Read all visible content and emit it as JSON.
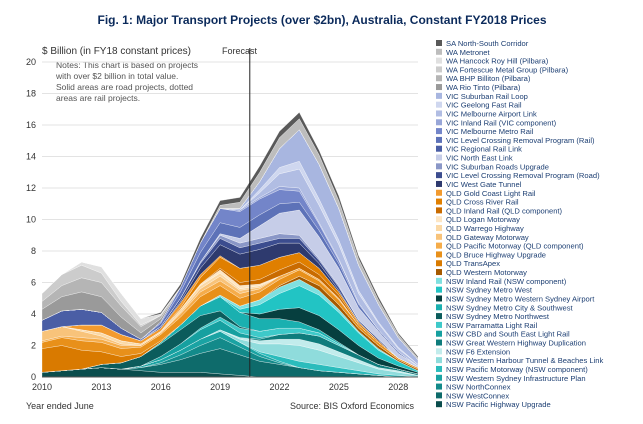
{
  "chart_data": {
    "type": "area",
    "title": "Fig. 1:   Major Transport Projects (over $2bn), Australia, Constant FY2018 Prices",
    "ylabel": "$ Billion (in FY18 constant prices)",
    "xlabel": "Year ended June",
    "source": "Source: BIS Oxford Economics",
    "note": [
      "Notes: This chart is based on projects",
      "with over $2 billion in total value.",
      "Solid areas are road projects, dotted",
      "areas are rail projects."
    ],
    "forecast_label": "Forecast",
    "forecast_x": 2020.5,
    "xlim": [
      2010,
      2029
    ],
    "ylim": [
      0,
      20
    ],
    "x_ticks": [
      2010,
      2013,
      2016,
      2019,
      2022,
      2025,
      2028
    ],
    "y_ticks": [
      0,
      2,
      4,
      6,
      8,
      10,
      12,
      14,
      16,
      18,
      20
    ],
    "grid": "horizontal",
    "legend_position": "right",
    "x": [
      2010,
      2011,
      2012,
      2013,
      2014,
      2015,
      2016,
      2017,
      2018,
      2019,
      2020,
      2021,
      2022,
      2023,
      2024,
      2025,
      2026,
      2027,
      2028,
      2029
    ],
    "series": [
      {
        "name": "NSW Pacific Highway Upgrade",
        "color": "#0a4d4d",
        "values": [
          0.3,
          0.4,
          0.5,
          0.6,
          0.5,
          0.4,
          0.3,
          0.3,
          0.3,
          0.2,
          0.1,
          0,
          0,
          0,
          0,
          0,
          0,
          0,
          0,
          0
        ]
      },
      {
        "name": "NSW WestConnex",
        "color": "#0e6b6b",
        "values": [
          0,
          0,
          0,
          0,
          0,
          0.2,
          0.5,
          0.8,
          1.2,
          1.6,
          1.3,
          1.0,
          0.8,
          0.6,
          0.4,
          0.3,
          0.2,
          0.1,
          0,
          0
        ]
      },
      {
        "name": "NSW NorthConnex",
        "color": "#138a8a",
        "values": [
          0,
          0,
          0,
          0,
          0,
          0,
          0.1,
          0.3,
          0.5,
          0.7,
          0.5,
          0.3,
          0.1,
          0,
          0,
          0,
          0,
          0,
          0,
          0
        ]
      },
      {
        "name": "NSW Western Sydney Infrastructure Plan",
        "color": "#1aa3a3",
        "values": [
          0,
          0,
          0,
          0,
          0,
          0.1,
          0.2,
          0.3,
          0.4,
          0.4,
          0.3,
          0.2,
          0.1,
          0,
          0,
          0,
          0,
          0,
          0,
          0
        ]
      },
      {
        "name": "NSW Pacific Motorway (NSW component)",
        "color": "#2bbcbc",
        "values": [
          0,
          0,
          0,
          0,
          0,
          0,
          0,
          0,
          0,
          0,
          0,
          0.1,
          0.3,
          0.4,
          0.4,
          0.3,
          0.2,
          0.1,
          0.1,
          0
        ]
      },
      {
        "name": "NSW Western Harbour Tunnel & Beaches Link",
        "color": "#8fdcdc",
        "values": [
          0,
          0,
          0,
          0,
          0,
          0,
          0,
          0,
          0,
          0.1,
          0.2,
          0.5,
          0.8,
          1.0,
          0.9,
          0.7,
          0.5,
          0.3,
          0.2,
          0.1
        ]
      },
      {
        "name": "NSW F6 Extension",
        "color": "#c2ecec",
        "values": [
          0,
          0,
          0,
          0,
          0,
          0,
          0,
          0,
          0,
          0,
          0.1,
          0.2,
          0.3,
          0.4,
          0.4,
          0.3,
          0.2,
          0.1,
          0.1,
          0
        ]
      },
      {
        "name": "NSW Great Western Highway Duplication",
        "color": "#0f7c7c",
        "values": [
          0,
          0,
          0,
          0,
          0,
          0,
          0,
          0,
          0,
          0,
          0,
          0.1,
          0.3,
          0.4,
          0.5,
          0.4,
          0.3,
          0.2,
          0.1,
          0.1
        ]
      },
      {
        "name": "NSW CBD and South East Light Rail",
        "color": "#16a0a0",
        "values": [
          0,
          0,
          0,
          0,
          0,
          0,
          0.2,
          0.4,
          0.6,
          0.6,
          0.3,
          0.1,
          0,
          0,
          0,
          0,
          0,
          0,
          0,
          0
        ]
      },
      {
        "name": "NSW Parramatta Light Rail",
        "color": "#3ec9c9",
        "values": [
          0,
          0,
          0,
          0,
          0,
          0,
          0,
          0,
          0.1,
          0.2,
          0.3,
          0.4,
          0.4,
          0.3,
          0.2,
          0.1,
          0,
          0,
          0,
          0
        ]
      },
      {
        "name": "NSW Sydney Metro Northwest",
        "color": "#0b5c5c",
        "values": [
          0,
          0,
          0,
          0.2,
          0.4,
          0.6,
          0.8,
          0.9,
          0.8,
          0.4,
          0.1,
          0,
          0,
          0,
          0,
          0,
          0,
          0,
          0,
          0
        ]
      },
      {
        "name": "NSW Sydney Metro City & Southwest",
        "color": "#1ab0b0",
        "values": [
          0,
          0,
          0,
          0,
          0,
          0,
          0.1,
          0.3,
          0.6,
          0.9,
          0.9,
          0.8,
          0.6,
          0.4,
          0.2,
          0.1,
          0,
          0,
          0,
          0
        ]
      },
      {
        "name": "NSW Sydney Metro Western Sydney Airport",
        "color": "#063f3f",
        "values": [
          0,
          0,
          0,
          0,
          0,
          0,
          0,
          0,
          0,
          0,
          0,
          0.3,
          0.6,
          0.9,
          0.9,
          0.8,
          0.6,
          0.4,
          0.2,
          0.1
        ]
      },
      {
        "name": "NSW Sydney Metro West",
        "color": "#22c4c4",
        "values": [
          0,
          0,
          0,
          0,
          0,
          0,
          0,
          0,
          0,
          0,
          0.2,
          0.6,
          1.0,
          1.4,
          1.3,
          1.1,
          0.8,
          0.5,
          0.3,
          0.1
        ]
      },
      {
        "name": "NSW Inland Rail (NSW component)",
        "color": "#7fe0e0",
        "values": [
          0,
          0,
          0,
          0,
          0,
          0,
          0,
          0,
          0,
          0.1,
          0.2,
          0.3,
          0.4,
          0.4,
          0.3,
          0.2,
          0.1,
          0.1,
          0,
          0
        ]
      },
      {
        "name": "QLD Western Motorway",
        "color": "#a65a00",
        "values": [
          0,
          0,
          0,
          0,
          0,
          0,
          0,
          0,
          0,
          0,
          0,
          0,
          0.1,
          0.2,
          0.3,
          0.3,
          0.2,
          0.2,
          0.1,
          0.1
        ]
      },
      {
        "name": "QLD TransApex",
        "color": "#d97a00",
        "values": [
          1.5,
          1.6,
          1.2,
          0.8,
          0.4,
          0.2,
          0.1,
          0,
          0,
          0,
          0,
          0,
          0,
          0,
          0,
          0,
          0,
          0,
          0,
          0
        ]
      },
      {
        "name": "QLD Bruce Highway Upgrade",
        "color": "#e8901a",
        "values": [
          0.4,
          0.5,
          0.6,
          0.6,
          0.5,
          0.4,
          0.4,
          0.5,
          0.6,
          0.6,
          0.5,
          0.5,
          0.4,
          0.4,
          0.3,
          0.3,
          0.2,
          0.2,
          0.1,
          0.1
        ]
      },
      {
        "name": "QLD Pacific Motorway (QLD component)",
        "color": "#f5ac4a",
        "values": [
          0.1,
          0.1,
          0.2,
          0.2,
          0.2,
          0.1,
          0.1,
          0.2,
          0.3,
          0.3,
          0.3,
          0.2,
          0.2,
          0.1,
          0.1,
          0.1,
          0,
          0,
          0,
          0
        ]
      },
      {
        "name": "QLD Gateway Motorway",
        "color": "#f8c37a",
        "values": [
          0.6,
          0.6,
          0.4,
          0.2,
          0.1,
          0,
          0,
          0.1,
          0.2,
          0.3,
          0.2,
          0.1,
          0,
          0,
          0,
          0,
          0,
          0,
          0,
          0
        ]
      },
      {
        "name": "QLD Warrego Highway",
        "color": "#fbd9a6",
        "values": [
          0,
          0,
          0.1,
          0.2,
          0.2,
          0.1,
          0.1,
          0.2,
          0.2,
          0.2,
          0.1,
          0.1,
          0,
          0,
          0,
          0,
          0,
          0,
          0,
          0
        ]
      },
      {
        "name": "QLD Logan Motorway",
        "color": "#fde6c4",
        "values": [
          0,
          0,
          0,
          0,
          0,
          0,
          0,
          0,
          0.1,
          0.2,
          0.2,
          0.1,
          0,
          0,
          0,
          0,
          0,
          0,
          0,
          0
        ]
      },
      {
        "name": "QLD Inland Rail (QLD component)",
        "color": "#c96b00",
        "values": [
          0,
          0,
          0,
          0,
          0,
          0,
          0,
          0,
          0,
          0.1,
          0.2,
          0.3,
          0.4,
          0.4,
          0.3,
          0.2,
          0.1,
          0.1,
          0,
          0
        ]
      },
      {
        "name": "QLD Cross River Rail",
        "color": "#e07f00",
        "values": [
          0,
          0,
          0,
          0,
          0,
          0,
          0,
          0.1,
          0.4,
          0.7,
          0.9,
          0.9,
          0.8,
          0.6,
          0.4,
          0.2,
          0.1,
          0,
          0,
          0
        ]
      },
      {
        "name": "QLD Gold Coast Light Rail",
        "color": "#f29a2e",
        "values": [
          0,
          0,
          0.3,
          0.5,
          0.4,
          0.2,
          0.2,
          0.3,
          0.2,
          0.1,
          0,
          0,
          0,
          0,
          0,
          0,
          0,
          0,
          0,
          0
        ]
      },
      {
        "name": "VIC West Gate Tunnel",
        "color": "#2e3a6e",
        "values": [
          0,
          0,
          0,
          0,
          0,
          0,
          0,
          0.1,
          0.4,
          0.7,
          0.9,
          1.0,
          0.9,
          0.6,
          0.3,
          0.1,
          0,
          0,
          0,
          0
        ]
      },
      {
        "name": "VIC Level Crossing Removal Program (Road)",
        "color": "#3c4d8f",
        "values": [
          0,
          0,
          0,
          0,
          0,
          0,
          0.1,
          0.2,
          0.3,
          0.4,
          0.4,
          0.4,
          0.3,
          0.3,
          0.2,
          0.2,
          0.1,
          0.1,
          0,
          0
        ]
      },
      {
        "name": "VIC Suburban Roads Upgrade",
        "color": "#8a97c7",
        "values": [
          0,
          0,
          0,
          0,
          0,
          0,
          0,
          0,
          0.1,
          0.2,
          0.3,
          0.3,
          0.3,
          0.2,
          0.1,
          0.1,
          0,
          0,
          0,
          0
        ]
      },
      {
        "name": "VIC North East Link",
        "color": "#c6cde8",
        "values": [
          0,
          0,
          0,
          0,
          0,
          0,
          0,
          0,
          0,
          0.1,
          0.3,
          0.8,
          1.3,
          1.6,
          1.4,
          1.1,
          0.8,
          0.5,
          0.3,
          0.1
        ]
      },
      {
        "name": "VIC Regional Rail Link",
        "color": "#4a5ea5",
        "values": [
          0.7,
          1.0,
          1.0,
          0.8,
          0.4,
          0.1,
          0,
          0,
          0,
          0,
          0,
          0,
          0,
          0,
          0,
          0,
          0,
          0,
          0,
          0
        ]
      },
      {
        "name": "VIC Level Crossing Removal Program (Rail)",
        "color": "#5d72b8",
        "values": [
          0,
          0,
          0,
          0,
          0,
          0,
          0.2,
          0.4,
          0.6,
          0.7,
          0.7,
          0.7,
          0.6,
          0.5,
          0.4,
          0.3,
          0.2,
          0.1,
          0.1,
          0
        ]
      },
      {
        "name": "VIC Melbourne Metro Rail",
        "color": "#7385c9",
        "values": [
          0,
          0,
          0,
          0,
          0,
          0,
          0.1,
          0.3,
          0.6,
          0.9,
          1.0,
          1.0,
          0.9,
          0.7,
          0.4,
          0.2,
          0.1,
          0,
          0,
          0
        ]
      },
      {
        "name": "VIC Inland Rail (VIC component)",
        "color": "#98a6d8",
        "values": [
          0,
          0,
          0,
          0,
          0,
          0,
          0,
          0,
          0,
          0,
          0.1,
          0.1,
          0.2,
          0.2,
          0.1,
          0.1,
          0,
          0,
          0,
          0
        ]
      },
      {
        "name": "VIC Melbourne Airport Link",
        "color": "#b1bde3",
        "values": [
          0,
          0,
          0,
          0,
          0,
          0,
          0,
          0,
          0,
          0,
          0,
          0.3,
          0.8,
          1.2,
          1.1,
          0.9,
          0.6,
          0.4,
          0.2,
          0.1
        ]
      },
      {
        "name": "VIC Geelong Fast Rail",
        "color": "#cfd7ef",
        "values": [
          0,
          0,
          0,
          0,
          0,
          0,
          0,
          0,
          0,
          0,
          0,
          0.2,
          0.4,
          0.5,
          0.4,
          0.3,
          0.2,
          0.1,
          0.1,
          0
        ]
      },
      {
        "name": "VIC Suburban Rail Loop",
        "color": "#a8b6e0",
        "values": [
          0,
          0,
          0,
          0,
          0,
          0,
          0,
          0,
          0,
          0,
          0.1,
          0.5,
          1.2,
          2.0,
          2.2,
          2.0,
          1.6,
          1.1,
          0.6,
          0.3
        ]
      },
      {
        "name": "WA Rio Tinto (Pilbara)",
        "color": "#9a9a9a",
        "values": [
          0.7,
          0.9,
          1.1,
          1.0,
          0.7,
          0.4,
          0.2,
          0,
          0,
          0,
          0,
          0,
          0,
          0,
          0,
          0,
          0,
          0,
          0,
          0
        ]
      },
      {
        "name": "WA BHP Billiton (Pilbara)",
        "color": "#b5b5b5",
        "values": [
          0.5,
          0.7,
          0.9,
          0.9,
          0.7,
          0.4,
          0.2,
          0,
          0,
          0,
          0,
          0,
          0,
          0,
          0,
          0,
          0,
          0,
          0,
          0
        ]
      },
      {
        "name": "WA Fortescue Metal Group (Pilbara)",
        "color": "#cccccc",
        "values": [
          0.5,
          0.7,
          0.8,
          0.6,
          0.3,
          0.1,
          0,
          0,
          0,
          0,
          0,
          0,
          0,
          0,
          0,
          0,
          0,
          0,
          0,
          0
        ]
      },
      {
        "name": "WA Hancock Roy Hill (Pilbara)",
        "color": "#e0e0e0",
        "values": [
          0,
          0,
          0.2,
          0.4,
          0.5,
          0.4,
          0.1,
          0,
          0,
          0,
          0,
          0,
          0,
          0,
          0,
          0,
          0,
          0,
          0,
          0
        ]
      },
      {
        "name": "WA Metronet",
        "color": "#bdbdbd",
        "values": [
          0,
          0,
          0,
          0,
          0,
          0,
          0,
          0,
          0,
          0.2,
          0.4,
          0.6,
          0.7,
          0.7,
          0.6,
          0.5,
          0.4,
          0.3,
          0.2,
          0.1
        ]
      },
      {
        "name": "SA North-South Corridor",
        "color": "#595959",
        "values": [
          0,
          0,
          0,
          0,
          0,
          0,
          0.1,
          0.2,
          0.3,
          0.3,
          0.3,
          0.4,
          0.4,
          0.4,
          0.3,
          0.3,
          0.2,
          0.2,
          0.1,
          0.1
        ]
      }
    ]
  }
}
